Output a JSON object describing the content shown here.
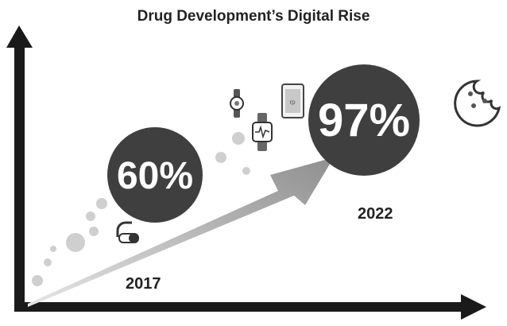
{
  "title": "Drug Development’s Digital Rise",
  "stats": [
    {
      "year": "2017",
      "percent": "60%"
    },
    {
      "year": "2022",
      "percent": "97%"
    }
  ],
  "colors": {
    "circle": "#3f3f3f",
    "arrow_light": "#d6d6d6",
    "arrow_dark": "#9a9a9a",
    "axis": "#1a1a1a",
    "dots": "#cfcfcf"
  },
  "icons": [
    "pill-icon",
    "smartwatch-icon",
    "fitness-tracker-icon",
    "tablet-icon",
    "cookie-icon"
  ]
}
